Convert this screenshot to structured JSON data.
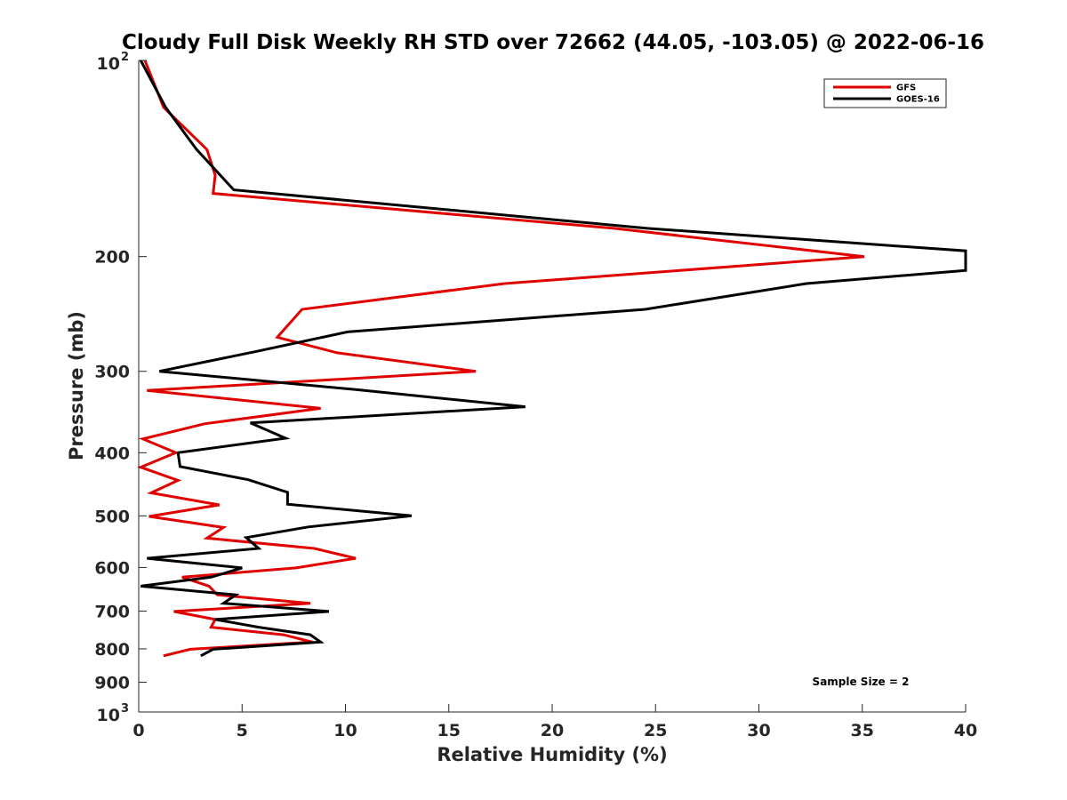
{
  "chart_data": {
    "type": "line",
    "title": "Cloudy Full Disk Weekly RH STD over 72662 (44.05, -103.05) @ 2022-06-16",
    "xlabel": "Relative Humidity (%)",
    "ylabel": "Pressure (mb)",
    "xlim": [
      0,
      40
    ],
    "ylim": [
      100,
      1000
    ],
    "y_scale": "log",
    "y_reversed": true,
    "grid": false,
    "legend_position": "top-right",
    "annotation": "Sample Size = 2",
    "x_ticks": [
      "0",
      "5",
      "10",
      "15",
      "20",
      "25",
      "30",
      "35",
      "40"
    ],
    "y_ticks": [
      {
        "value": 100,
        "label": "10",
        "sup": "2"
      },
      {
        "value": 200,
        "label": "200",
        "sup": ""
      },
      {
        "value": 300,
        "label": "300",
        "sup": ""
      },
      {
        "value": 400,
        "label": "400",
        "sup": ""
      },
      {
        "value": 500,
        "label": "500",
        "sup": ""
      },
      {
        "value": 600,
        "label": "600",
        "sup": ""
      },
      {
        "value": 700,
        "label": "700",
        "sup": ""
      },
      {
        "value": 800,
        "label": "800",
        "sup": ""
      },
      {
        "value": 900,
        "label": "900",
        "sup": ""
      },
      {
        "value": 1000,
        "label": "10",
        "sup": "3"
      }
    ],
    "series": [
      {
        "name": "GFS",
        "color": "#e00000",
        "points": [
          [
            0.3,
            100
          ],
          [
            1.2,
            118
          ],
          [
            3.3,
            137
          ],
          [
            3.7,
            150
          ],
          [
            3.6,
            160
          ],
          [
            23,
            181
          ],
          [
            35.1,
            200
          ],
          [
            17.7,
            220
          ],
          [
            7.9,
            241
          ],
          [
            6.7,
            266
          ],
          [
            9.6,
            281
          ],
          [
            16.3,
            300
          ],
          [
            0.4,
            321
          ],
          [
            8.8,
            342
          ],
          [
            3.2,
            361
          ],
          [
            0.2,
            381
          ],
          [
            1.8,
            400
          ],
          [
            0.1,
            421
          ],
          [
            1.9,
            441
          ],
          [
            0.6,
            461
          ],
          [
            3.9,
            481
          ],
          [
            0.5,
            501
          ],
          [
            4.1,
            521
          ],
          [
            3.3,
            541
          ],
          [
            8.5,
            561
          ],
          [
            10.5,
            581
          ],
          [
            7.6,
            601
          ],
          [
            2.1,
            621
          ],
          [
            3.4,
            641
          ],
          [
            3.8,
            661
          ],
          [
            8.3,
            681
          ],
          [
            1.7,
            701
          ],
          [
            3.7,
            721
          ],
          [
            3.5,
            741
          ],
          [
            7.0,
            761
          ],
          [
            8.4,
            781
          ],
          [
            2.5,
            801
          ],
          [
            1.2,
            820
          ]
        ]
      },
      {
        "name": "GOES-16",
        "color": "#000000",
        "points": [
          [
            0.1,
            100
          ],
          [
            1.3,
            118
          ],
          [
            2.8,
            137
          ],
          [
            4.6,
            158
          ],
          [
            24.6,
            181
          ],
          [
            40,
            196
          ],
          [
            40,
            210
          ],
          [
            32.3,
            220
          ],
          [
            24.5,
            241
          ],
          [
            10.1,
            261
          ],
          [
            5.6,
            280
          ],
          [
            1.0,
            300
          ],
          [
            10.5,
            320
          ],
          [
            18.7,
            340
          ],
          [
            5.4,
            360
          ],
          [
            7.1,
            380
          ],
          [
            1.9,
            400
          ],
          [
            2.0,
            420
          ],
          [
            5.3,
            440
          ],
          [
            7.2,
            460
          ],
          [
            7.2,
            480
          ],
          [
            13.2,
            500
          ],
          [
            8.2,
            520
          ],
          [
            5.2,
            540
          ],
          [
            5.8,
            561
          ],
          [
            0.4,
            581
          ],
          [
            5.0,
            601
          ],
          [
            3.5,
            621
          ],
          [
            0.1,
            641
          ],
          [
            4.7,
            661
          ],
          [
            4.1,
            681
          ],
          [
            9.2,
            701
          ],
          [
            3.7,
            721
          ],
          [
            5.8,
            741
          ],
          [
            8.3,
            761
          ],
          [
            8.8,
            781
          ],
          [
            3.6,
            801
          ],
          [
            3.0,
            820
          ]
        ]
      }
    ]
  }
}
